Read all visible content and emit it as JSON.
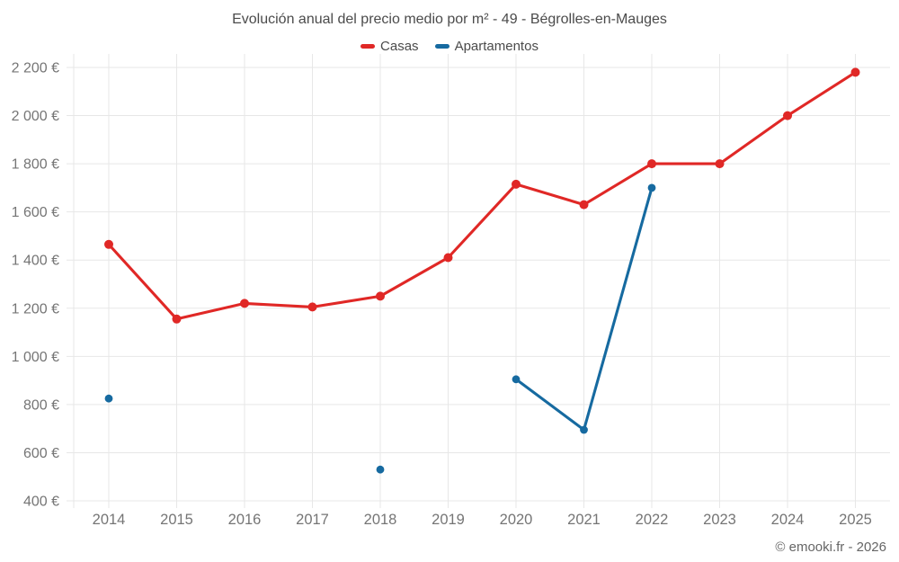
{
  "title": "Evolución anual del precio medio por m² - 49 - Bégrolles-en-Mauges",
  "footer": "© emooki.fr - 2026",
  "colors": {
    "casas": "#e02826",
    "apartamentos": "#166aa0",
    "grid": "#e7e7e7",
    "axis_text": "#757575",
    "title_text": "#4b4b4b"
  },
  "legend": {
    "items": [
      {
        "label": "Casas",
        "color": "#e02826"
      },
      {
        "label": "Apartamentos",
        "color": "#166aa0"
      }
    ]
  },
  "chart_data": {
    "type": "line",
    "title": "Evolución anual del precio medio por m² - 49 - Bégrolles-en-Mauges",
    "categories": [
      "2014",
      "2015",
      "2016",
      "2017",
      "2018",
      "2019",
      "2020",
      "2021",
      "2022",
      "2023",
      "2024",
      "2025"
    ],
    "series": [
      {
        "name": "Casas",
        "color": "#e02826",
        "values": [
          1465,
          1155,
          1220,
          1205,
          1250,
          1410,
          1715,
          1630,
          1800,
          1800,
          2000,
          2180
        ]
      },
      {
        "name": "Apartamentos",
        "color": "#166aa0",
        "values": [
          825,
          null,
          null,
          null,
          530,
          null,
          905,
          695,
          1700,
          null,
          null,
          null
        ]
      }
    ],
    "xlabel": "",
    "ylabel": "",
    "ylim": [
      400,
      2200
    ],
    "ytick_step": 200,
    "ytick_labels": [
      "400 €",
      "600 €",
      "800 €",
      "1 000 €",
      "1 200 €",
      "1 400 €",
      "1 600 €",
      "1 800 €",
      "2 000 €",
      "2 200 €"
    ],
    "grid": true,
    "legend_position": "top",
    "currency": "€"
  }
}
